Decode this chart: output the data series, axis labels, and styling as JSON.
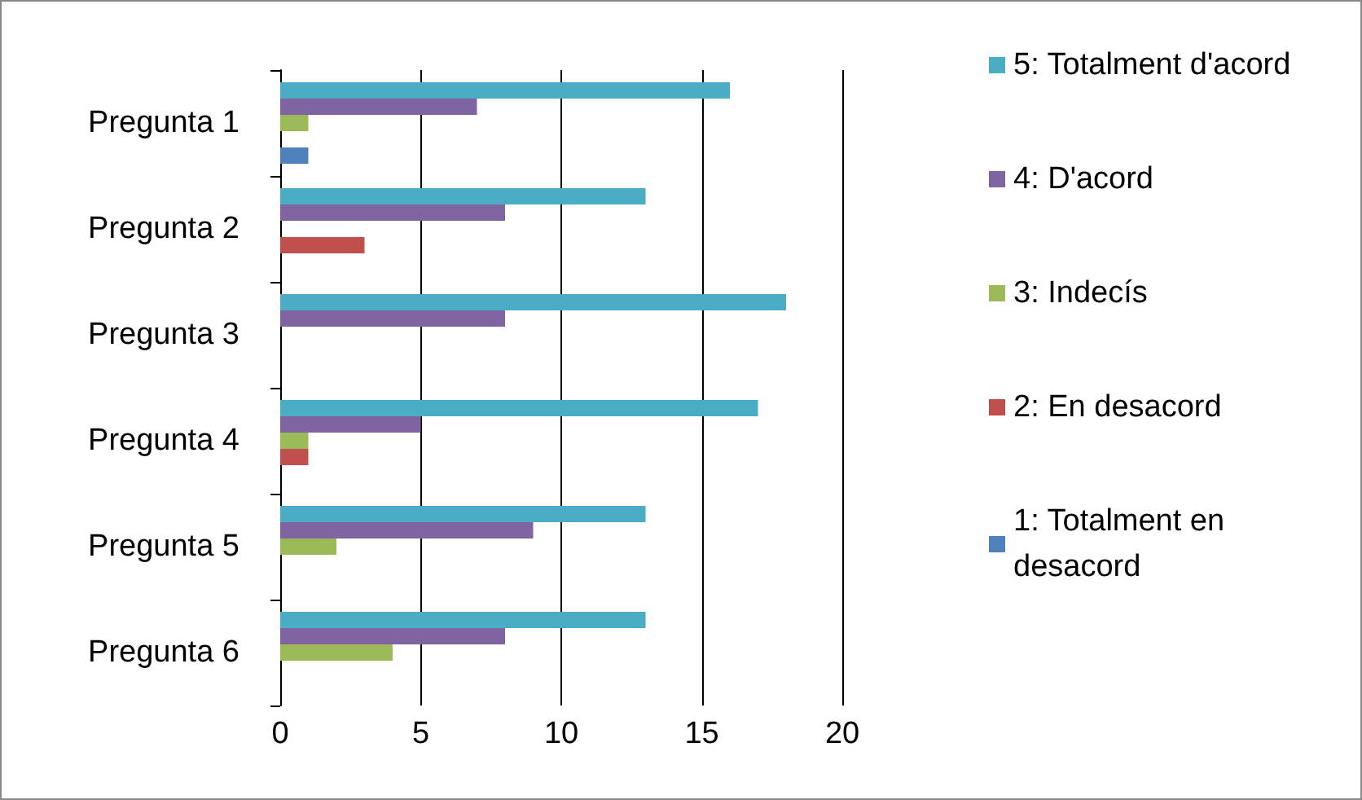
{
  "chart_data": {
    "type": "bar",
    "orientation": "horizontal",
    "categories": [
      "Pregunta 1",
      "Pregunta 2",
      "Pregunta 3",
      "Pregunta 4",
      "Pregunta 5",
      "Pregunta 6"
    ],
    "series": [
      {
        "name": "5: Totalment d'acord",
        "color": "#4bacc6",
        "values": [
          16,
          13,
          18,
          17,
          13,
          13
        ]
      },
      {
        "name": "4: D'acord",
        "color": "#8064a2",
        "values": [
          7,
          8,
          8,
          5,
          9,
          8
        ]
      },
      {
        "name": "3: Indecís",
        "color": "#9bbb59",
        "values": [
          1,
          0,
          0,
          1,
          2,
          4
        ]
      },
      {
        "name": "2: En desacord",
        "color": "#c0504d",
        "values": [
          0,
          3,
          0,
          1,
          0,
          0
        ]
      },
      {
        "name": "1: Totalment en desacord",
        "color": "#4f81bd",
        "values": [
          1,
          0,
          0,
          0,
          0,
          0
        ]
      }
    ],
    "xlim": [
      0,
      20
    ],
    "xticks": [
      0,
      5,
      10,
      15,
      20
    ],
    "grid": "x",
    "legend": "right"
  }
}
